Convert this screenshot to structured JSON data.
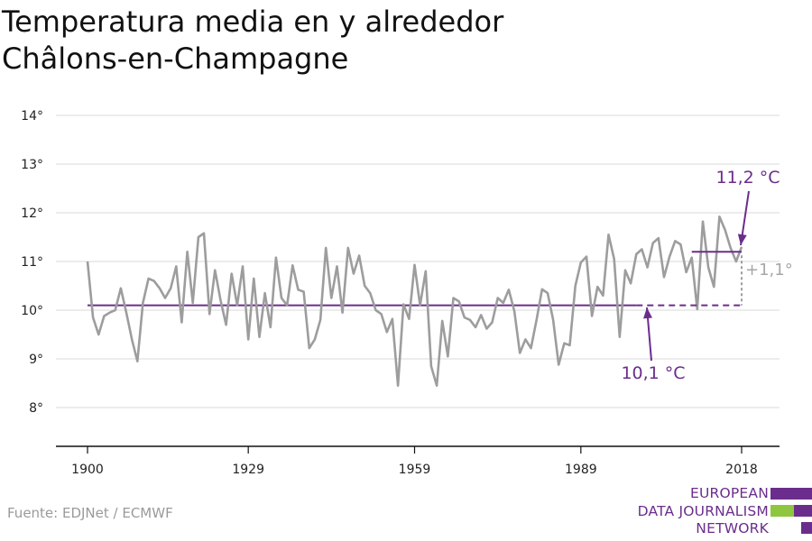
{
  "title_line1": "Temperatura media en y alrededor",
  "title_line2": "Châlons-en-Champagne",
  "source": "Fuente: EDJNet / ECMWF",
  "logo": {
    "line1": "EUROPEAN",
    "line2": "DATA JOURNALISM",
    "line3": "NETWORK"
  },
  "colors": {
    "series": "#9d9d9d",
    "accent": "#6b2d8c",
    "grid": "#d9d9d9",
    "logo_green": "#8ec63f"
  },
  "chart_data": {
    "type": "line",
    "ylim": [
      7,
      14
    ],
    "y_ticks": [
      8,
      9,
      10,
      11,
      12,
      13,
      14
    ],
    "y_tick_labels": [
      "8°",
      "9°",
      "10°",
      "11°",
      "12°",
      "13°",
      "14°"
    ],
    "x_tick_values": [
      1900,
      1929,
      1959,
      1989,
      2018
    ],
    "x_tick_labels": [
      "1900",
      "1929",
      "1959",
      "1989",
      "2018"
    ],
    "x": [
      1900,
      1901,
      1902,
      1903,
      1904,
      1905,
      1906,
      1907,
      1908,
      1909,
      1910,
      1911,
      1912,
      1913,
      1914,
      1915,
      1916,
      1917,
      1918,
      1919,
      1920,
      1921,
      1922,
      1923,
      1924,
      1925,
      1926,
      1927,
      1928,
      1929,
      1930,
      1931,
      1932,
      1933,
      1934,
      1935,
      1936,
      1937,
      1938,
      1939,
      1940,
      1941,
      1942,
      1943,
      1944,
      1945,
      1946,
      1947,
      1948,
      1949,
      1950,
      1951,
      1952,
      1953,
      1954,
      1955,
      1956,
      1957,
      1958,
      1959,
      1960,
      1961,
      1962,
      1963,
      1964,
      1965,
      1966,
      1967,
      1968,
      1969,
      1970,
      1971,
      1972,
      1973,
      1974,
      1975,
      1976,
      1977,
      1978,
      1979,
      1980,
      1981,
      1982,
      1983,
      1984,
      1985,
      1986,
      1987,
      1988,
      1989,
      1990,
      1991,
      1992,
      1993,
      1994,
      1995,
      1996,
      1997,
      1998,
      1999,
      2000,
      2001,
      2002,
      2003,
      2004,
      2005,
      2006,
      2007,
      2008,
      2009,
      2010,
      2011,
      2012,
      2013,
      2014,
      2015,
      2016,
      2017,
      2018
    ],
    "series": [
      {
        "values": [
          11.0,
          9.85,
          9.5,
          9.88,
          9.95,
          10.0,
          10.45,
          9.95,
          9.4,
          8.95,
          10.15,
          10.65,
          10.6,
          10.45,
          10.25,
          10.45,
          10.9,
          9.75,
          11.2,
          10.15,
          11.5,
          11.58,
          9.92,
          10.82,
          10.2,
          9.7,
          10.75,
          10.1,
          10.9,
          9.4,
          10.65,
          9.45,
          10.35,
          9.65,
          11.08,
          10.25,
          10.1,
          10.92,
          10.42,
          10.38,
          9.22,
          9.4,
          9.8,
          11.28,
          10.25,
          10.9,
          9.95,
          11.28,
          10.75,
          11.12,
          10.5,
          10.35,
          10.0,
          9.92,
          9.55,
          9.82,
          8.45,
          10.12,
          9.82,
          10.93,
          10.1,
          10.8,
          8.85,
          8.45,
          9.78,
          9.05,
          10.25,
          10.18,
          9.85,
          9.8,
          9.65,
          9.9,
          9.62,
          9.75,
          10.25,
          10.15,
          10.42,
          9.98,
          9.12,
          9.4,
          9.22,
          9.8,
          10.43,
          10.35,
          9.8,
          8.88,
          9.32,
          9.28,
          10.5,
          10.98,
          11.1,
          9.88,
          10.48,
          10.3,
          11.55,
          11.05,
          9.45,
          10.82,
          10.55,
          11.15,
          11.25,
          10.88,
          11.38,
          11.48,
          10.68,
          11.1,
          11.42,
          11.35,
          10.78,
          11.08,
          10.02,
          11.82,
          10.88,
          10.48,
          11.92,
          11.65,
          11.28,
          11.0,
          11.3
        ]
      }
    ],
    "baseline_value": 10.1,
    "baseline_x_range": [
      1900,
      2018
    ],
    "recent_value": 11.2,
    "recent_x_range": [
      2009,
      2018
    ],
    "annotations": {
      "recent_label": "11,2 °C",
      "baseline_label": "10,1 °C",
      "difference_label": "+1,1°"
    }
  }
}
